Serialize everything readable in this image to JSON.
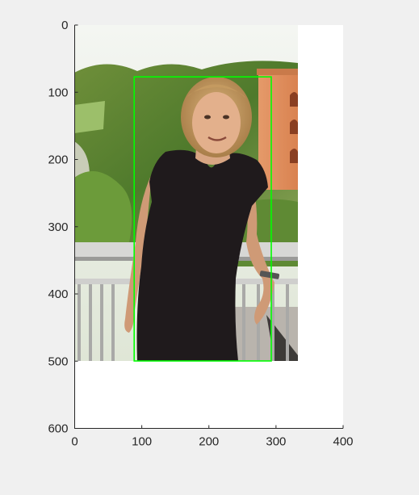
{
  "chart_data": {
    "type": "image",
    "title": "",
    "xlabel": "",
    "ylabel": "",
    "xlim": [
      0,
      400
    ],
    "ylim": [
      600,
      0
    ],
    "y_axis_reversed": true,
    "grid": false,
    "x_ticks": [
      0,
      100,
      200,
      300,
      400
    ],
    "y_ticks": [
      0,
      100,
      200,
      300,
      400,
      500,
      600
    ],
    "image_extent": {
      "x": [
        0,
        333
      ],
      "y": [
        0,
        500
      ]
    },
    "bounding_box": {
      "x_min": 89,
      "x_max": 293,
      "y_min": 77,
      "y_max": 500,
      "color": "#00ff00"
    }
  },
  "colors": {
    "figure_background": "#f0f0f0",
    "axes_background": "#ffffff",
    "axis_line": "#262626",
    "box": "#00ff00"
  }
}
